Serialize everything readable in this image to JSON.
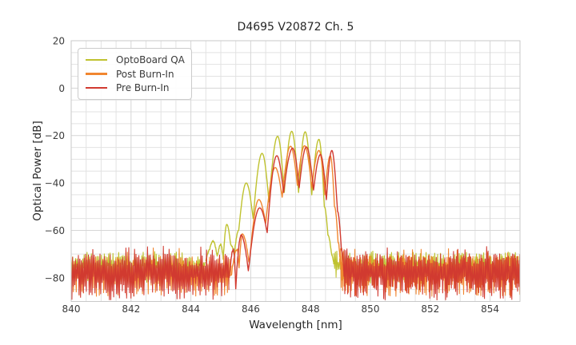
{
  "chart_data": {
    "type": "line",
    "title": "D4695 V20872 Ch. 5",
    "xlabel": "Wavelength [nm]",
    "ylabel": "Optical Power [dB]",
    "xlim": [
      840,
      855
    ],
    "ylim": [
      -90,
      20
    ],
    "xticks": {
      "values": [
        840,
        842,
        844,
        846,
        848,
        850,
        852,
        854
      ],
      "labels": [
        "840",
        "842",
        "844",
        "846",
        "848",
        "850",
        "852",
        "854"
      ]
    },
    "yticks": {
      "values": [
        20,
        0,
        -20,
        -40,
        -60,
        -80
      ],
      "labels": [
        "20",
        "0",
        "−20",
        "−40",
        "−60",
        "−80"
      ]
    },
    "grid": {
      "x_minor": 0.5,
      "y_minor": 5,
      "legend_position": "upper left",
      "minor_color": "#e2e2e2",
      "major_color": "#d6d6d6",
      "spine_color": "#c9c9c9"
    },
    "tick_label_color": "#3b3b3b",
    "series": [
      {
        "name": "OptoBoard QA",
        "color": "#bfc22f",
        "seed": 11,
        "noise": {
          "top": -71.5,
          "top_jit": 5,
          "bot": -78.5,
          "bot_jit": 8,
          "spike": -68.5,
          "spike_p": 0.04,
          "regions": [
            [
              840,
              844.5
            ],
            [
              848.78,
              855
            ]
          ]
        },
        "envelope": [
          [
            844.5,
            -73
          ],
          [
            844.62,
            -68.5
          ],
          [
            844.74,
            -64.5
          ],
          [
            844.88,
            -71
          ],
          [
            845.0,
            -66
          ],
          [
            845.08,
            -72
          ],
          [
            845.2,
            -57.5
          ],
          [
            845.33,
            -66
          ],
          [
            845.45,
            -70
          ],
          [
            845.6,
            -60
          ],
          [
            845.85,
            -40
          ],
          [
            846.08,
            -55
          ],
          [
            846.38,
            -27.5
          ],
          [
            846.61,
            -48
          ],
          [
            846.9,
            -20.3
          ],
          [
            847.12,
            -44
          ],
          [
            847.37,
            -18.2
          ],
          [
            847.6,
            -44
          ],
          [
            847.82,
            -18.4
          ],
          [
            848.04,
            -45
          ],
          [
            848.28,
            -21.6
          ],
          [
            848.46,
            -50
          ],
          [
            848.58,
            -62
          ],
          [
            848.7,
            -70
          ],
          [
            848.78,
            -74
          ]
        ]
      },
      {
        "name": "Post Burn-In",
        "color": "#f1862f",
        "seed": 23,
        "noise": {
          "top": -73,
          "top_jit": 5,
          "bot": -83.5,
          "bot_jit": 9,
          "spike": -67,
          "spike_p": 0.045,
          "regions": [
            [
              840,
              845.35
            ],
            [
              849.0,
              855
            ]
          ]
        },
        "envelope": [
          [
            845.35,
            -79
          ],
          [
            845.55,
            -68
          ],
          [
            845.61,
            -76
          ],
          [
            845.72,
            -61.5
          ],
          [
            845.95,
            -74
          ],
          [
            846.27,
            -47
          ],
          [
            846.5,
            -57
          ],
          [
            846.82,
            -33.5
          ],
          [
            847.05,
            -46
          ],
          [
            847.33,
            -24.5
          ],
          [
            847.56,
            -41
          ],
          [
            847.8,
            -24.3
          ],
          [
            848.04,
            -42
          ],
          [
            848.28,
            -26.3
          ],
          [
            848.48,
            -45
          ],
          [
            848.66,
            -28.5
          ],
          [
            848.8,
            -50
          ],
          [
            848.92,
            -65
          ],
          [
            849.0,
            -75
          ]
        ]
      },
      {
        "name": "Pre Burn-In",
        "color": "#d13a30",
        "seed": 37,
        "noise": {
          "top": -72.5,
          "top_jit": 5.5,
          "bot": -84.5,
          "bot_jit": 10,
          "spike": -66.5,
          "spike_p": 0.05,
          "regions": [
            [
              840,
              845.28
            ],
            [
              849.12,
              855
            ]
          ]
        },
        "envelope": [
          [
            845.28,
            -80
          ],
          [
            845.42,
            -68
          ],
          [
            845.5,
            -84
          ],
          [
            845.68,
            -62
          ],
          [
            845.92,
            -77
          ],
          [
            846.3,
            -50.5
          ],
          [
            846.55,
            -61
          ],
          [
            846.87,
            -28.5
          ],
          [
            847.1,
            -44
          ],
          [
            847.4,
            -25.3
          ],
          [
            847.62,
            -42
          ],
          [
            847.86,
            -24.8
          ],
          [
            848.1,
            -43
          ],
          [
            848.33,
            -28
          ],
          [
            848.53,
            -47
          ],
          [
            848.71,
            -26.3
          ],
          [
            848.9,
            -52
          ],
          [
            849.03,
            -68
          ],
          [
            849.12,
            -79
          ]
        ]
      }
    ]
  }
}
